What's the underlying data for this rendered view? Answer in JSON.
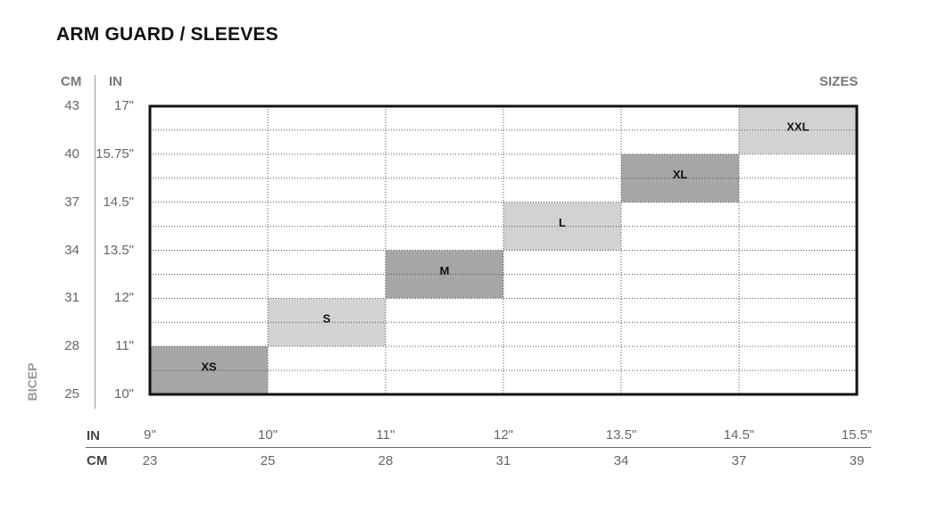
{
  "title": "ARM GUARD / SLEEVES",
  "headers": {
    "cm": "CM",
    "in": "IN",
    "sizes": "SIZES"
  },
  "axis_title": "BICEP",
  "chart_data": {
    "type": "heatmap",
    "title": "ARM GUARD / SLEEVES",
    "y_label": "BICEP",
    "y_ticks_cm": [
      "43",
      "40",
      "37",
      "34",
      "31",
      "28",
      "25"
    ],
    "y_ticks_in": [
      "17\"",
      "15.75\"",
      "14.5\"",
      "13.5\"",
      "12\"",
      "11\"",
      "10\""
    ],
    "y_values_cm": [
      43,
      40,
      37,
      34,
      31,
      28,
      25
    ],
    "x_ticks_in": [
      "9\"",
      "10\"",
      "11\"",
      "12\"",
      "13.5\"",
      "14.5\"",
      "15.5\""
    ],
    "x_ticks_cm": [
      "23",
      "25",
      "28",
      "31",
      "34",
      "37",
      "39"
    ],
    "x_values_cm": [
      23,
      25,
      28,
      31,
      34,
      37,
      39
    ],
    "x_row_labels": {
      "in": "IN",
      "cm": "CM"
    },
    "legend_label": "SIZES",
    "sizes": [
      {
        "name": "XS",
        "x_range_cm": [
          23,
          25
        ],
        "y_range_cm": [
          25,
          28
        ],
        "color": "#a6a5a7"
      },
      {
        "name": "S",
        "x_range_cm": [
          25,
          28
        ],
        "y_range_cm": [
          28,
          31
        ],
        "color": "#d2d2d2"
      },
      {
        "name": "M",
        "x_range_cm": [
          28,
          31
        ],
        "y_range_cm": [
          31,
          34
        ],
        "color": "#a6a5a7"
      },
      {
        "name": "L",
        "x_range_cm": [
          31,
          34
        ],
        "y_range_cm": [
          34,
          37
        ],
        "color": "#d2d2d2"
      },
      {
        "name": "XL",
        "x_range_cm": [
          34,
          37
        ],
        "y_range_cm": [
          37,
          40
        ],
        "color": "#a6a5a7"
      },
      {
        "name": "XXL",
        "x_range_cm": [
          37,
          39
        ],
        "y_range_cm": [
          40,
          43
        ],
        "color": "#d2d2d2"
      }
    ],
    "grid": "dotted"
  }
}
